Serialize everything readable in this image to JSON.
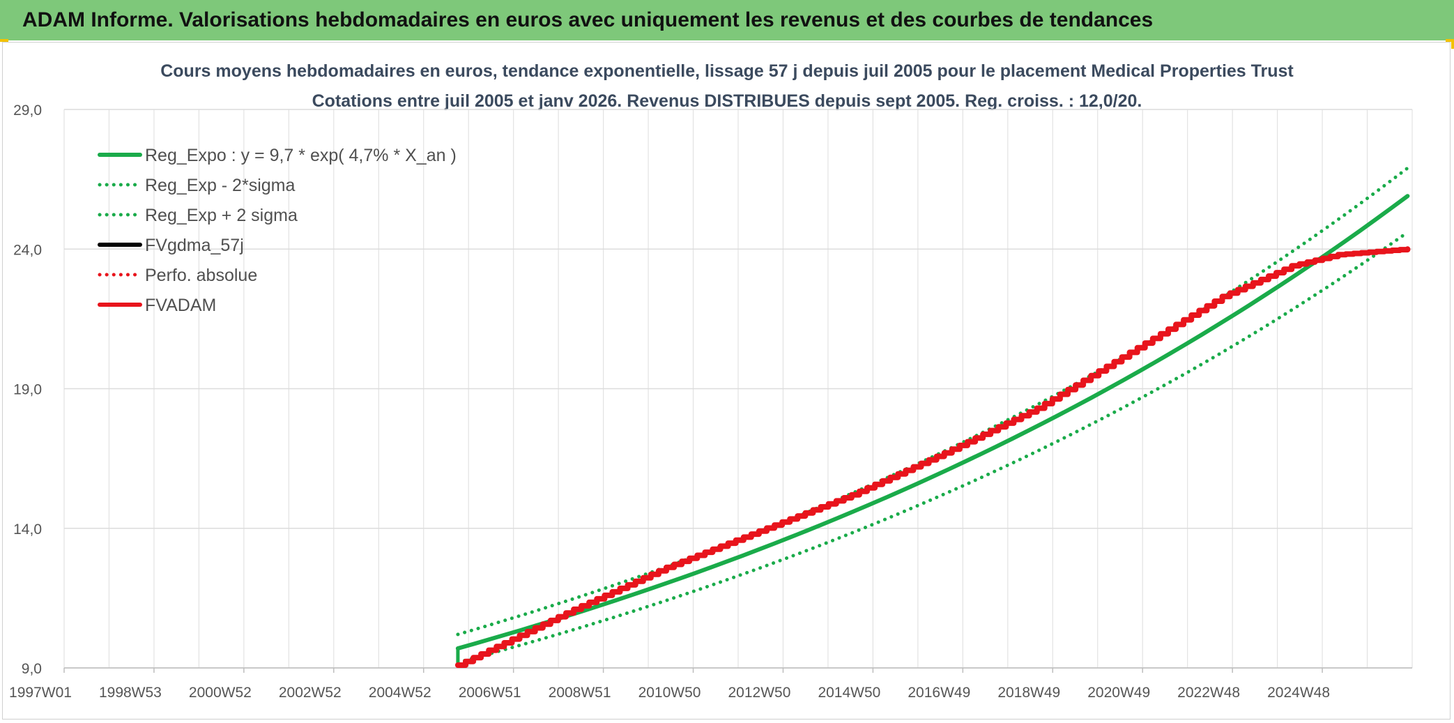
{
  "header": {
    "title": "ADAM Informe. Valorisations hebdomadaires en euros avec uniquement les revenus et des courbes de tendances"
  },
  "chart_data": {
    "type": "line",
    "title": "Cours moyens hebdomadaires en euros, tendance exponentielle, lissage 57 j depuis juil 2005 pour le placement Medical Properties Trust",
    "subtitle": "Cotations entre juil 2005 et janv 2026. Revenus DISTRIBUES depuis sept 2005. Reg. croiss. : 12,0/20.",
    "xlabel": "",
    "ylabel": "",
    "x_tick_labels": [
      "1997W01",
      "1998W53",
      "2000W52",
      "2002W52",
      "2004W52",
      "2006W51",
      "2008W51",
      "2010W50",
      "2012W50",
      "2014W50",
      "2016W49",
      "2018W49",
      "2020W49",
      "2022W48",
      "2024W48"
    ],
    "x_range": [
      1997.0,
      2026.1
    ],
    "y_ticks": [
      "9,0",
      "14,0",
      "19,0",
      "24,0",
      "29,0"
    ],
    "ylim": [
      9.0,
      29.0
    ],
    "grid": true,
    "legend_position": "top-left",
    "series": [
      {
        "name": "Reg_Expo : y = 9,7 * exp( 4,7% *  X_an )",
        "color": "#1aab4a",
        "style": "solid",
        "points": [
          [
            2005.5,
            9.7
          ],
          [
            2026.0,
            25.9
          ]
        ]
      },
      {
        "name": "Reg_Exp - 2*sigma",
        "color": "#1aab4a",
        "style": "dotted",
        "points": [
          [
            2005.5,
            9.2
          ],
          [
            2026.0,
            24.6
          ]
        ]
      },
      {
        "name": "Reg_Exp + 2 sigma",
        "color": "#1aab4a",
        "style": "dotted",
        "points": [
          [
            2005.5,
            10.2
          ],
          [
            2026.0,
            26.9
          ]
        ]
      },
      {
        "name": "FVgdma_57j",
        "color": "#000000",
        "style": "solid",
        "points": []
      },
      {
        "name": "Perfo. absolue",
        "color": "#e8141c",
        "style": "dotted",
        "points": []
      },
      {
        "name": "FVADAM",
        "color": "#e8141c",
        "style": "thick",
        "points": [
          [
            2005.5,
            9.1
          ],
          [
            2006.5,
            9.9
          ],
          [
            2008.0,
            11.1
          ],
          [
            2010.0,
            12.6
          ],
          [
            2012.0,
            13.9
          ],
          [
            2014.0,
            15.2
          ],
          [
            2016.0,
            16.7
          ],
          [
            2018.0,
            18.3
          ],
          [
            2020.0,
            20.3
          ],
          [
            2022.0,
            22.3
          ],
          [
            2023.5,
            23.4
          ],
          [
            2024.5,
            23.8
          ],
          [
            2026.0,
            24.0
          ]
        ]
      }
    ]
  }
}
